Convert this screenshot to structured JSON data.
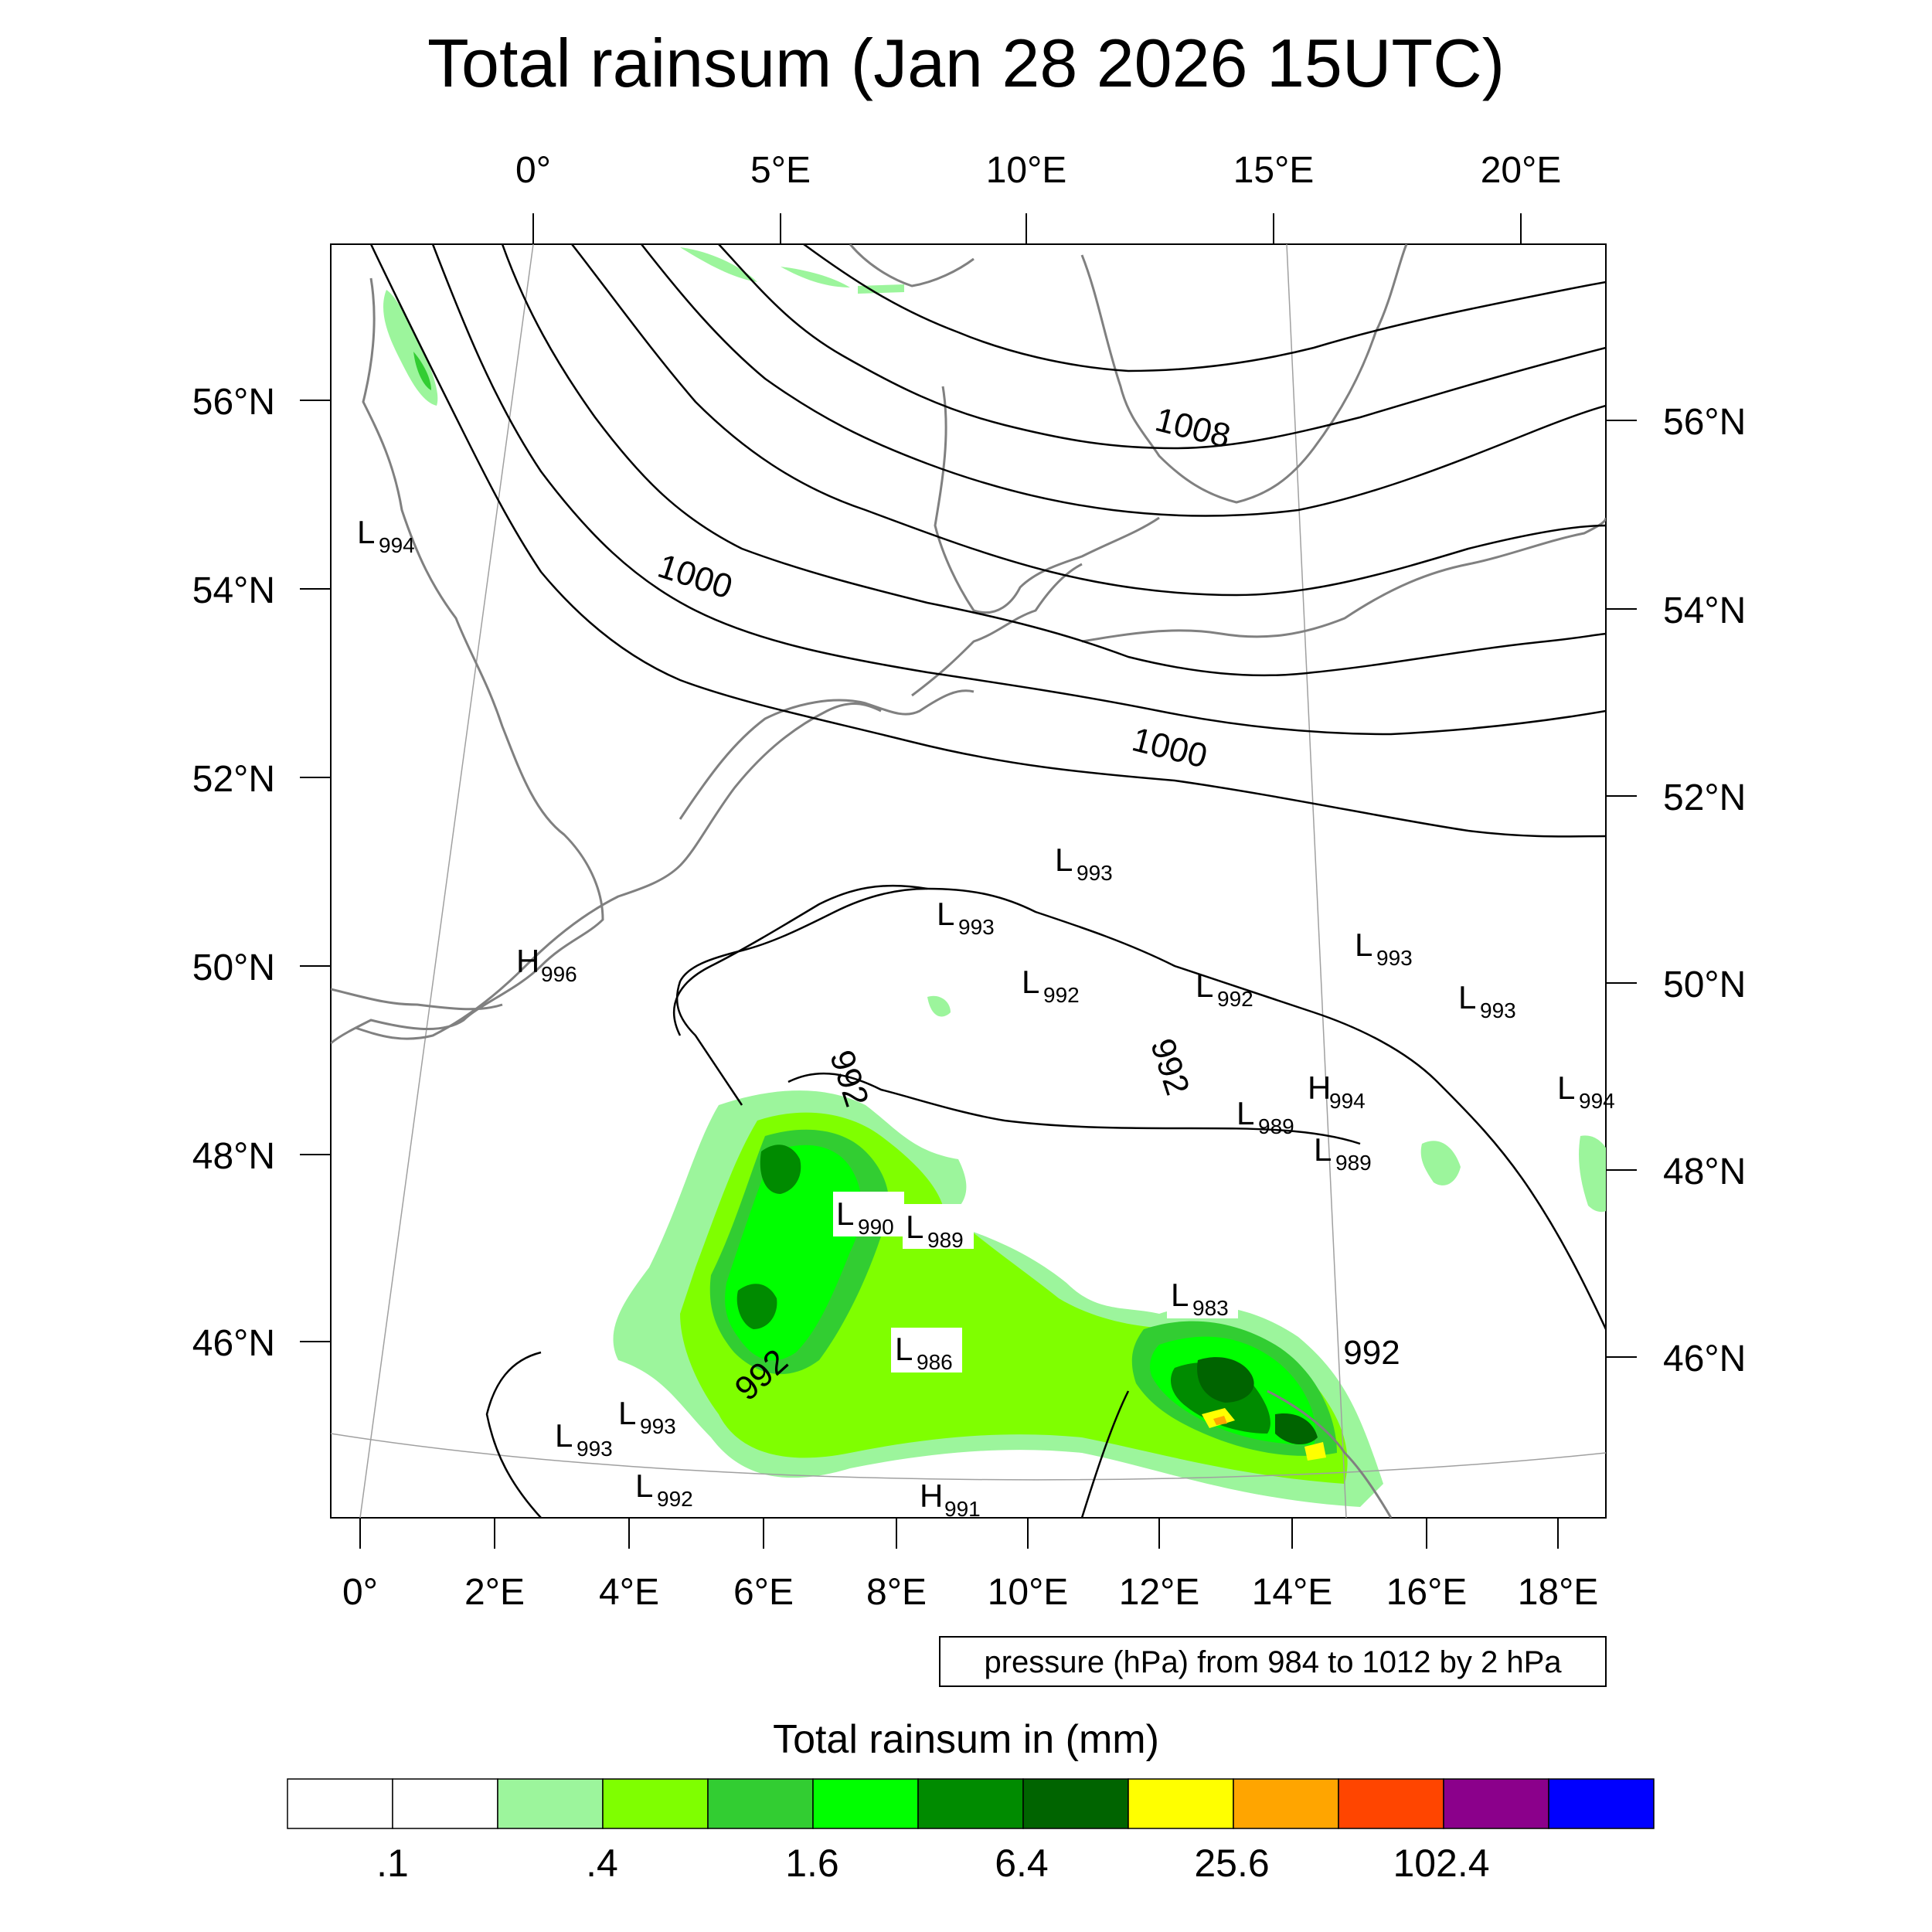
{
  "title": "Total rainsum (Jan 28 2026 15UTC)",
  "top_lon_labels": [
    "0°",
    "5°E",
    "10°E",
    "15°E",
    "20°E"
  ],
  "bottom_lon_labels": [
    "0°",
    "2°E",
    "4°E",
    "6°E",
    "8°E",
    "10°E",
    "12°E",
    "14°E",
    "16°E",
    "18°E"
  ],
  "left_lat_labels": [
    "56°N",
    "54°N",
    "52°N",
    "50°N",
    "48°N",
    "46°N"
  ],
  "right_lat_labels": [
    "56°N",
    "54°N",
    "52°N",
    "50°N",
    "48°N",
    "46°N"
  ],
  "isobar_labels": [
    "1008",
    "1000",
    "1000",
    "992",
    "992",
    "992",
    "992"
  ],
  "pressure_centers": [
    {
      "type": "L",
      "value": "994"
    },
    {
      "type": "H",
      "value": "996"
    },
    {
      "type": "L",
      "value": "993"
    },
    {
      "type": "L",
      "value": "993"
    },
    {
      "type": "L",
      "value": "992"
    },
    {
      "type": "L",
      "value": "992"
    },
    {
      "type": "L",
      "value": "993"
    },
    {
      "type": "L",
      "value": "993"
    },
    {
      "type": "H",
      "value": "994"
    },
    {
      "type": "L",
      "value": "989"
    },
    {
      "type": "L",
      "value": "989"
    },
    {
      "type": "L",
      "value": "994"
    },
    {
      "type": "L",
      "value": "990"
    },
    {
      "type": "L",
      "value": "989"
    },
    {
      "type": "L",
      "value": "983"
    },
    {
      "type": "L",
      "value": "986"
    },
    {
      "type": "L",
      "value": "993"
    },
    {
      "type": "L",
      "value": "993"
    },
    {
      "type": "L",
      "value": "992"
    },
    {
      "type": "H",
      "value": "991"
    }
  ],
  "info_box": "pressure (hPa) from 984 to 1012 by 2 hPa",
  "colorbar": {
    "title": "Total rainsum in (mm)",
    "colors": [
      "#ffffff",
      "#ffffff",
      "#9cf59c",
      "#7fff00",
      "#32cd32",
      "#00ff00",
      "#008b00",
      "#006400",
      "#ffff00",
      "#ffa500",
      "#ff4500",
      "#8b008b",
      "#0000ff"
    ],
    "labels": [
      ".1",
      ".4",
      "1.6",
      "6.4",
      "25.6",
      "102.4"
    ]
  },
  "legend_colors": {
    "rain_light": "#9cf59c",
    "rain_lime": "#7fff00",
    "rain_green": "#32cd32",
    "rain_bright": "#00ff00",
    "rain_dark": "#008b00",
    "rain_darker": "#006400",
    "rain_yellow": "#ffff00",
    "rain_orange": "#ffa500"
  }
}
